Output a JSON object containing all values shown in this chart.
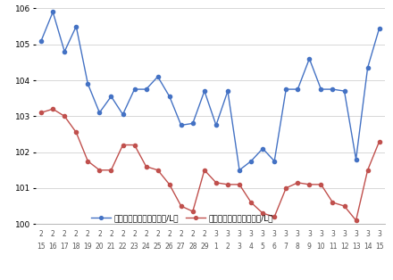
{
  "x_labels_top": [
    "2",
    "2",
    "2",
    "2",
    "2",
    "2",
    "2",
    "2",
    "2",
    "2",
    "2",
    "2",
    "2",
    "2",
    "2",
    "3",
    "3",
    "3",
    "3",
    "3",
    "3",
    "3",
    "3",
    "3",
    "3",
    "3",
    "3",
    "3",
    "3",
    "3"
  ],
  "x_labels_bot": [
    "15",
    "16",
    "17",
    "18",
    "19",
    "20",
    "21",
    "22",
    "23",
    "24",
    "25",
    "26",
    "27",
    "28",
    "29",
    "1",
    "2",
    "3",
    "4",
    "5",
    "6",
    "7",
    "8",
    "9",
    "10",
    "11",
    "12",
    "13",
    "14",
    "15"
  ],
  "blue_values": [
    105.1,
    105.9,
    104.8,
    105.5,
    103.9,
    103.1,
    103.55,
    103.05,
    103.75,
    103.75,
    104.1,
    103.55,
    102.75,
    102.8,
    103.7,
    102.75,
    103.7,
    101.5,
    101.75,
    102.1,
    101.75,
    103.75,
    103.75,
    104.6,
    103.75,
    103.75,
    103.7,
    101.8,
    104.35,
    105.45
  ],
  "red_values": [
    103.1,
    103.2,
    103.0,
    102.55,
    101.75,
    101.5,
    101.5,
    102.2,
    102.2,
    101.6,
    101.5,
    101.1,
    100.5,
    100.35,
    101.5,
    101.15,
    101.1,
    101.1,
    100.6,
    100.3,
    100.2,
    101.0,
    101.15,
    101.1,
    101.1,
    100.6,
    100.5,
    100.1,
    101.5,
    102.3
  ],
  "ylim_min": 100,
  "ylim_max": 106,
  "yticks": [
    100,
    101,
    102,
    103,
    104,
    105,
    106
  ],
  "blue_color": "#4472c4",
  "red_color": "#c0504d",
  "blue_label": "レギュラー看板価格（円/L）",
  "red_label": "レギュラー実売価格（円/L）",
  "bg_color": "#ffffff",
  "grid_color": "#c8c8c8"
}
